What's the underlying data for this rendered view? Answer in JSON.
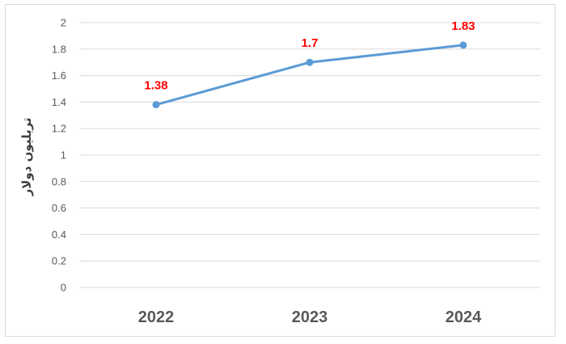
{
  "chart_data": {
    "type": "line",
    "categories": [
      "2022",
      "2023",
      "2024"
    ],
    "series": [
      {
        "values": [
          1.38,
          1.7,
          1.83
        ],
        "labels": [
          "1.38",
          "1.7",
          "1.83"
        ]
      }
    ],
    "title": "",
    "xlabel": "",
    "ylabel": "تريليون دولار",
    "ylim": [
      0,
      2
    ],
    "yticks": [
      "0",
      "0.2",
      "0.4",
      "0.6",
      "0.8",
      "1",
      "1.2",
      "1.4",
      "1.6",
      "1.8",
      "2"
    ],
    "grid": true,
    "legend": "none",
    "colors": {
      "line": "#5b9bd5",
      "data_label": "#ff0000",
      "grid": "#d9d9d9",
      "axis_text": "#595959"
    }
  }
}
